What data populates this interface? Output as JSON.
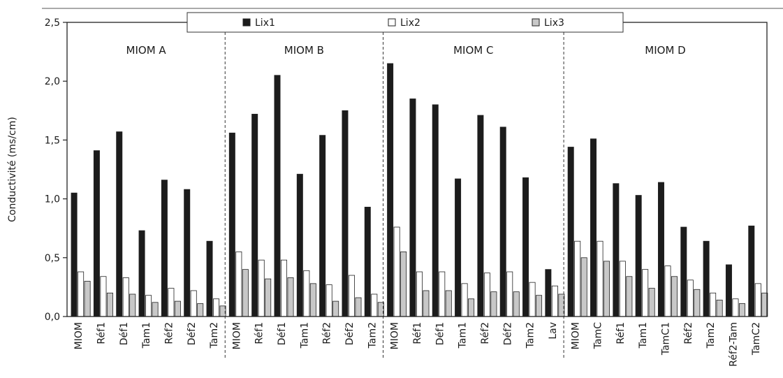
{
  "chart_data": {
    "type": "bar",
    "title": "",
    "xlabel": "",
    "ylabel": "Conductivité (ms/cm)",
    "ylim": [
      0,
      2.5
    ],
    "yticks": [
      "0,0",
      "0,5",
      "1,0",
      "1,5",
      "2,0",
      "2,5"
    ],
    "legend_position": "top-center",
    "series": [
      {
        "name": "Lix1",
        "color": "#1c1c1c"
      },
      {
        "name": "Lix2",
        "color": "#ffffff"
      },
      {
        "name": "Lix3",
        "color": "#c8c8c8"
      }
    ],
    "groups": [
      {
        "name": "MIOM A",
        "categories": [
          {
            "label": "MIOM",
            "values": [
              1.05,
              0.38,
              0.3
            ]
          },
          {
            "label": "Réf1",
            "values": [
              1.41,
              0.34,
              0.2
            ]
          },
          {
            "label": "Déf1",
            "values": [
              1.57,
              0.33,
              0.19
            ]
          },
          {
            "label": "Tam1",
            "values": [
              0.73,
              0.18,
              0.12
            ]
          },
          {
            "label": "Réf2",
            "values": [
              1.16,
              0.24,
              0.13
            ]
          },
          {
            "label": "Déf2",
            "values": [
              1.08,
              0.22,
              0.11
            ]
          },
          {
            "label": "Tam2",
            "values": [
              0.64,
              0.15,
              0.09
            ]
          }
        ]
      },
      {
        "name": "MIOM B",
        "categories": [
          {
            "label": "MIOM",
            "values": [
              1.56,
              0.55,
              0.4
            ]
          },
          {
            "label": "Réf1",
            "values": [
              1.72,
              0.48,
              0.32
            ]
          },
          {
            "label": "Déf1",
            "values": [
              2.05,
              0.48,
              0.33
            ]
          },
          {
            "label": "Tam1",
            "values": [
              1.21,
              0.39,
              0.28
            ]
          },
          {
            "label": "Réf2",
            "values": [
              1.54,
              0.27,
              0.13
            ]
          },
          {
            "label": "Déf2",
            "values": [
              1.75,
              0.35,
              0.16
            ]
          },
          {
            "label": "Tam2",
            "values": [
              0.93,
              0.19,
              0.12
            ]
          }
        ]
      },
      {
        "name": "MIOM C",
        "categories": [
          {
            "label": "MIOM",
            "values": [
              2.15,
              0.76,
              0.55
            ]
          },
          {
            "label": "Réf1",
            "values": [
              1.85,
              0.38,
              0.22
            ]
          },
          {
            "label": "Déf1",
            "values": [
              1.8,
              0.38,
              0.22
            ]
          },
          {
            "label": "Tam1",
            "values": [
              1.17,
              0.28,
              0.15
            ]
          },
          {
            "label": "Réf2",
            "values": [
              1.71,
              0.37,
              0.21
            ]
          },
          {
            "label": "Déf2",
            "values": [
              1.61,
              0.38,
              0.21
            ]
          },
          {
            "label": "Tam2",
            "values": [
              1.18,
              0.29,
              0.18
            ]
          },
          {
            "label": "Lav",
            "values": [
              0.4,
              0.26,
              0.19
            ]
          }
        ]
      },
      {
        "name": "MIOM D",
        "categories": [
          {
            "label": "MIOM",
            "values": [
              1.44,
              0.64,
              0.5
            ]
          },
          {
            "label": "TamC",
            "values": [
              1.51,
              0.64,
              0.47
            ]
          },
          {
            "label": "Réf1",
            "values": [
              1.13,
              0.47,
              0.34
            ]
          },
          {
            "label": "Tam1",
            "values": [
              1.03,
              0.4,
              0.24
            ]
          },
          {
            "label": "TamC1",
            "values": [
              1.14,
              0.43,
              0.34
            ]
          },
          {
            "label": "Réf2",
            "values": [
              0.76,
              0.31,
              0.23
            ]
          },
          {
            "label": "Tam2",
            "values": [
              0.64,
              0.2,
              0.14
            ]
          },
          {
            "label": "Réf2-Tam",
            "values": [
              0.44,
              0.15,
              0.11
            ]
          },
          {
            "label": "TamC2",
            "values": [
              0.77,
              0.28,
              0.2
            ]
          }
        ]
      }
    ]
  }
}
